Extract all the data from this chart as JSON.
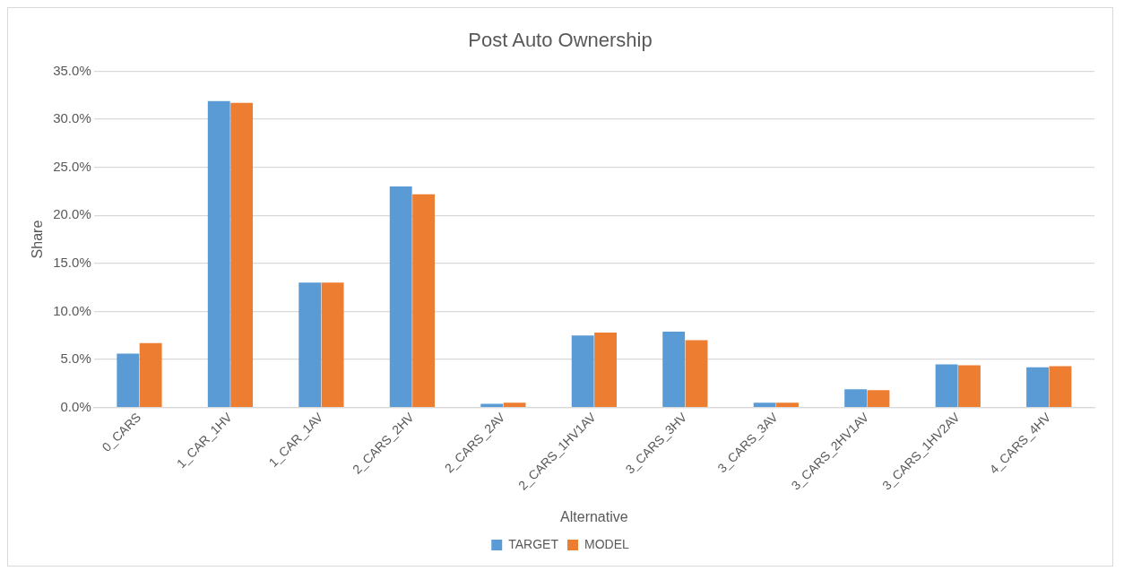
{
  "chart_data": {
    "type": "bar",
    "title": "Post Auto Ownership",
    "xlabel": "Alternative",
    "ylabel": "Share",
    "categories": [
      "0_CARS",
      "1_CAR_1HV",
      "1_CAR_1AV",
      "2_CARS_2HV",
      "2_CARS_2AV",
      "2_CARS_1HV1AV",
      "3_CARS_3HV",
      "3_CARS_3AV",
      "3_CARS_2HV1AV",
      "3_CARS_1HV2AV",
      "4_CARS_4HV"
    ],
    "series": [
      {
        "name": "TARGET",
        "color": "#5b9bd5",
        "values": [
          5.6,
          31.9,
          13.0,
          23.0,
          0.4,
          7.5,
          7.9,
          0.5,
          1.9,
          4.5,
          4.2
        ]
      },
      {
        "name": "MODEL",
        "color": "#ed7d31",
        "values": [
          6.7,
          31.7,
          13.0,
          22.2,
          0.5,
          7.8,
          7.0,
          0.5,
          1.8,
          4.4,
          4.3
        ]
      }
    ],
    "ylim": [
      0,
      35
    ],
    "yticks": [
      {
        "value": 0,
        "label": "0.0%"
      },
      {
        "value": 5,
        "label": "5.0%"
      },
      {
        "value": 10,
        "label": "10.0%"
      },
      {
        "value": 15,
        "label": "15.0%"
      },
      {
        "value": 20,
        "label": "20.0%"
      },
      {
        "value": 25,
        "label": "25.0%"
      },
      {
        "value": 30,
        "label": "30.0%"
      },
      {
        "value": 35,
        "label": "35.0%"
      }
    ],
    "grid": "y",
    "legend": "bottom"
  }
}
